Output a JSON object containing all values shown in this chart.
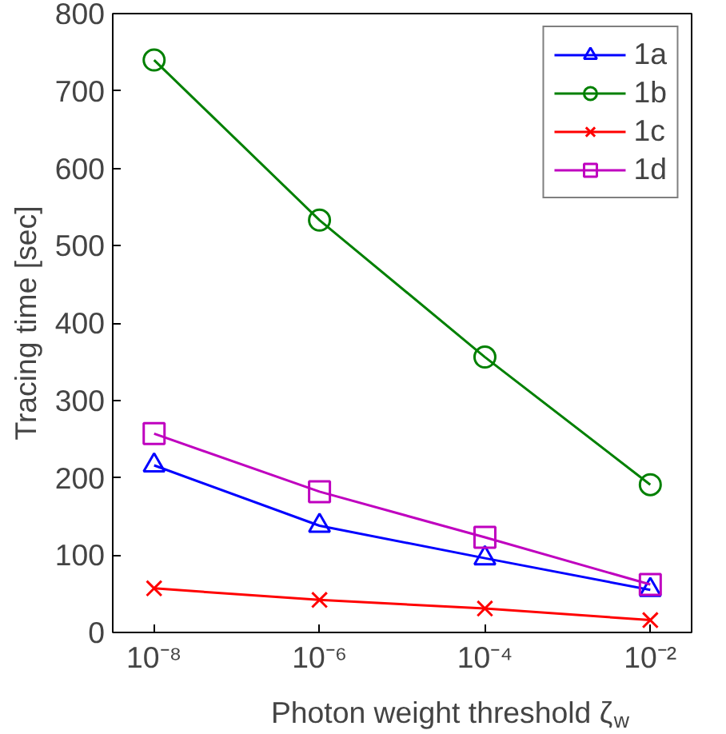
{
  "chart_data": {
    "type": "line",
    "xlabel": "Photon weight threshold ζ$_{w}$",
    "ylabel": "Tracing time [sec]",
    "x": [
      1e-08,
      1e-06,
      0.0001,
      0.01
    ],
    "log": "x",
    "xlim": [
      3.16e-09,
      0.0316
    ],
    "xticks": [
      {
        "value": 1e-08,
        "label": "10⁻⁸"
      },
      {
        "value": 1e-06,
        "label": "10⁻⁶"
      },
      {
        "value": 0.0001,
        "label": "10⁻⁴"
      },
      {
        "value": 0.01,
        "label": "10⁻²"
      }
    ],
    "ylim": [
      0,
      800
    ],
    "yticks": [
      0,
      100,
      200,
      300,
      400,
      500,
      600,
      700,
      800
    ],
    "grid": false,
    "legend": "top right",
    "line_style": "solid",
    "series": [
      {
        "name": "1a",
        "color": "#0000ff",
        "marker": "triangle",
        "values": [
          216,
          138,
          96,
          55
        ]
      },
      {
        "name": "1b",
        "color": "#008000",
        "marker": "circle",
        "values": [
          740,
          533,
          356,
          191
        ]
      },
      {
        "name": "1c",
        "color": "#ff0000",
        "marker": "cross",
        "values": [
          57,
          42,
          31,
          16
        ]
      },
      {
        "name": "1d",
        "color": "#bf00bf",
        "marker": "square",
        "values": [
          257,
          182,
          123,
          62
        ]
      }
    ]
  }
}
